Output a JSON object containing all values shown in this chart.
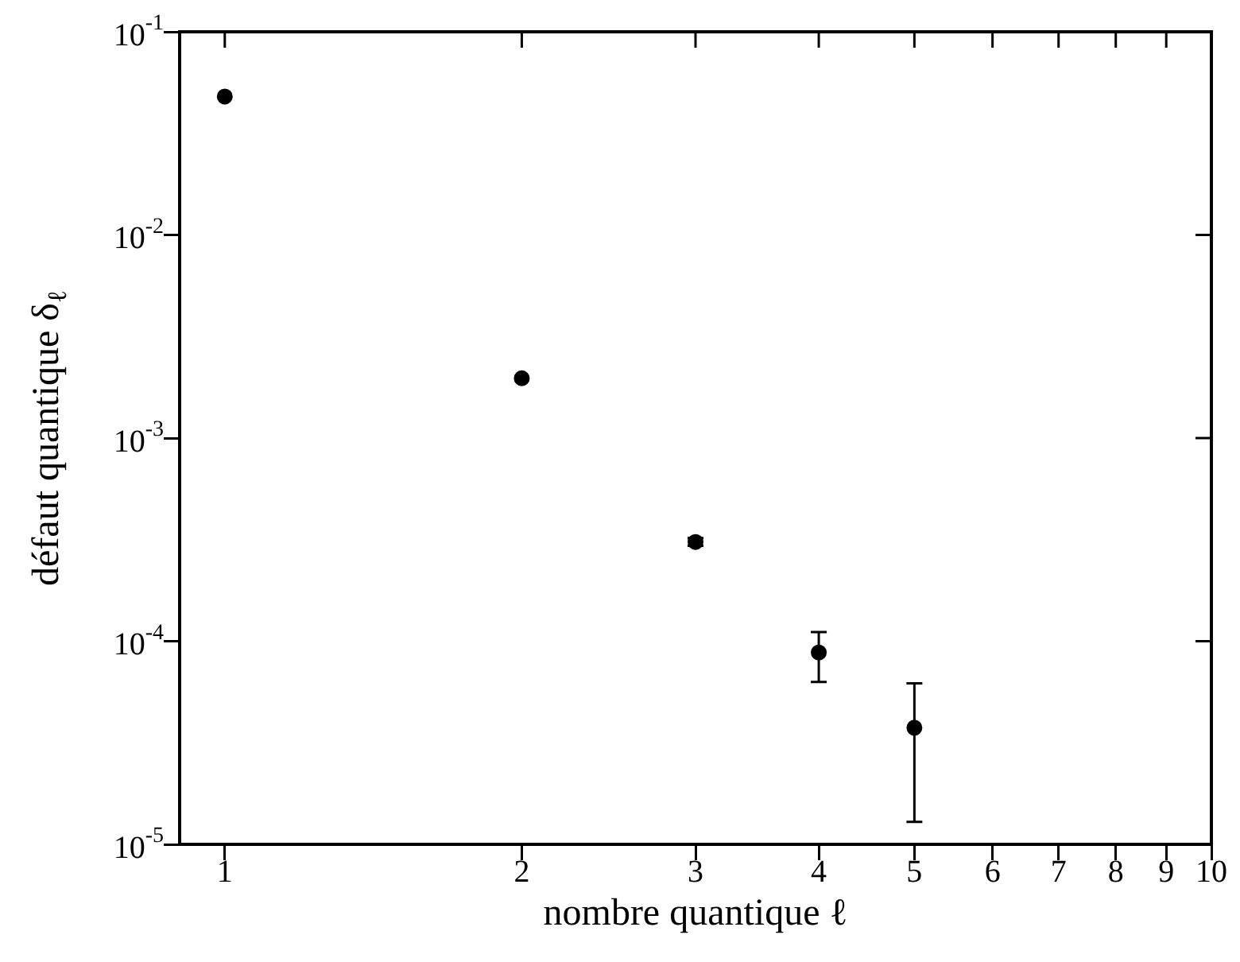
{
  "chart_data": {
    "type": "scatter",
    "xlabel": "nombre quantique ℓ",
    "ylabel": "défaut quantique δ$_{ℓ}$",
    "x": [
      1,
      2,
      3,
      4,
      5
    ],
    "series": [
      {
        "color": "#000000",
        "values": [
          0.048,
          0.00197,
          0.000308,
          8.8e-05,
          3.75e-05
        ],
        "errors": [
          null,
          null,
          [
            0.000295,
            0.000322
          ],
          [
            6.3e-05,
            0.000111
          ],
          [
            1.29e-05,
            6.2e-05
          ]
        ]
      }
    ],
    "log": "xy",
    "xlim": [
      0.9,
      10
    ],
    "ylim": [
      1e-05,
      0.1
    ],
    "xticks": [
      1,
      2,
      3,
      4,
      5,
      6,
      7,
      8,
      9,
      10
    ],
    "yticks": [
      {
        "value": 1e-05,
        "label": "10$^{-5}$"
      },
      {
        "value": 0.0001,
        "label": "10$^{-4}$"
      },
      {
        "value": 0.001,
        "label": "10$^{-3}$"
      },
      {
        "value": 0.01,
        "label": "10$^{-2}$"
      },
      {
        "value": 0.1,
        "label": "10$^{-1}$"
      }
    ],
    "grid": false,
    "legend": false,
    "marker": "circle"
  }
}
